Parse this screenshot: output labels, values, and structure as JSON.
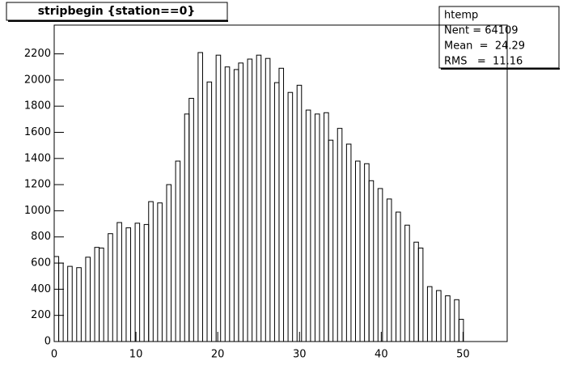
{
  "chart_data": {
    "type": "histogram",
    "title": "stripbegin {station==0}",
    "stats": {
      "name": "htemp",
      "lines": [
        "Nent = 64109",
        "Mean  =  24.29",
        "RMS   =  11.16"
      ]
    },
    "bins": [
      0,
      0.55,
      1.1,
      1.65,
      2.2,
      2.75,
      3.3,
      3.85,
      4.4,
      4.95,
      5.5,
      6.05,
      6.6,
      7.15,
      7.7,
      8.25,
      8.8,
      9.35,
      9.9,
      10.45,
      11,
      11.55,
      12.1,
      12.65,
      13.2,
      13.75,
      14.3,
      14.85,
      15.4,
      15.95,
      16.5,
      17.05,
      17.6,
      18.15,
      18.7,
      19.25,
      19.8,
      20.35,
      20.9,
      21.45,
      22,
      22.55,
      23.1,
      23.65,
      24.2,
      24.75,
      25.3,
      25.85,
      26.4,
      26.95,
      27.5,
      28.05,
      28.6,
      29.15,
      29.7,
      30.25,
      30.8,
      31.35,
      31.9,
      32.45,
      33,
      33.55,
      34.1,
      34.65,
      35.2,
      35.75,
      36.3,
      36.85,
      37.4,
      37.95,
      38.5,
      39.05,
      39.6,
      40.15,
      40.7,
      41.25,
      41.8,
      42.35,
      42.9,
      43.45,
      44,
      44.55,
      45.1,
      45.65,
      46.2,
      46.75,
      47.3,
      47.85,
      48.4,
      48.95,
      49.5,
      50.05,
      50.6,
      51.15,
      51.7,
      52.25,
      52.8,
      53.35,
      53.9,
      54.45,
      55
    ],
    "values": [
      650,
      600,
      0,
      575,
      0,
      565,
      0,
      645,
      0,
      720,
      715,
      0,
      825,
      0,
      910,
      0,
      870,
      0,
      905,
      0,
      895,
      1070,
      0,
      1060,
      0,
      1200,
      0,
      1380,
      0,
      1740,
      1860,
      0,
      2210,
      0,
      1985,
      0,
      2190,
      0,
      2100,
      0,
      2080,
      2130,
      0,
      2160,
      0,
      2190,
      0,
      2165,
      0,
      1980,
      2090,
      0,
      1905,
      0,
      1960,
      0,
      1770,
      0,
      1740,
      0,
      1750,
      1540,
      0,
      1630,
      0,
      1510,
      0,
      1380,
      0,
      1360,
      1230,
      0,
      1170,
      0,
      1090,
      0,
      990,
      0,
      890,
      0,
      760,
      715,
      0,
      420,
      0,
      390,
      0,
      350,
      0,
      320,
      170,
      0,
      0,
      0,
      0,
      0,
      0,
      0,
      0,
      0
    ],
    "color": "#000000",
    "xlim": [
      0,
      55.4
    ],
    "xticks": [
      0,
      10,
      20,
      30,
      40,
      50
    ],
    "ylim": [
      0,
      2420
    ],
    "yticks": [
      0,
      200,
      400,
      600,
      800,
      1000,
      1200,
      1400,
      1600,
      1800,
      2000,
      2200
    ]
  }
}
